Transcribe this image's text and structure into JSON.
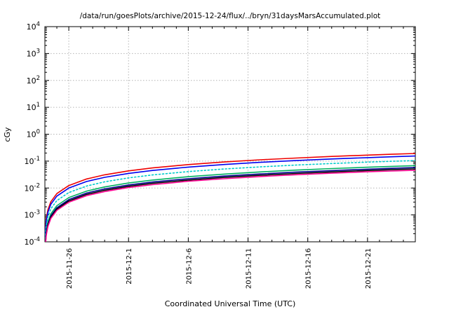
{
  "chart_data": {
    "type": "line",
    "title": "/data/run/goesPlots/archive/2015-12-24/flux/../bryn/31daysMarsAccumulated.plot",
    "xlabel": "Coordinated Universal Time (UTC)",
    "ylabel": "cGy",
    "legend": "none",
    "grid": true,
    "style": {
      "background": "#ffffff",
      "grid_color": "#b4b4b4",
      "axis_color": "#000000"
    },
    "x_axis": {
      "start_date_at_left_edge": "2015-11-24",
      "range_days": [
        0,
        31
      ],
      "minor_tick_every_days": 1,
      "ticks": [
        {
          "label": "2015-11-26",
          "day": 2
        },
        {
          "label": "2015-12-1",
          "day": 7
        },
        {
          "label": "2015-12-6",
          "day": 12
        },
        {
          "label": "2015-12-11",
          "day": 17
        },
        {
          "label": "2015-12-16",
          "day": 22
        },
        {
          "label": "2015-12-21",
          "day": 27
        }
      ]
    },
    "y_axis": {
      "scale": "log",
      "exponent_range": [
        -4,
        4
      ],
      "tick_exponents": [
        -4,
        -3,
        -2,
        -1,
        0,
        1,
        2,
        3,
        4
      ],
      "unit": "cGy"
    },
    "x_days": [
      0.016,
      0.03,
      0.06,
      0.12,
      0.25,
      0.5,
      1,
      2,
      3.5,
      5,
      7,
      9,
      12,
      15,
      18,
      21,
      24,
      27,
      29,
      31
    ],
    "series": [
      {
        "name": "red-accumulated-dose",
        "color": "#ee0000",
        "dash": "none",
        "values": [
          9.9e-05,
          0.00019,
          0.00037,
          0.00074,
          0.00155,
          0.0031,
          0.0062,
          0.0124,
          0.0217,
          0.031,
          0.0434,
          0.0558,
          0.0744,
          0.093,
          0.112,
          0.13,
          0.149,
          0.167,
          0.18,
          0.192
        ]
      },
      {
        "name": "blue-accumulated-dose",
        "color": "#0000ee",
        "dash": "none",
        "values": [
          8e-05,
          0.00015,
          0.0003,
          0.0006,
          0.00125,
          0.0025,
          0.005,
          0.01,
          0.0175,
          0.025,
          0.035,
          0.045,
          0.06,
          0.075,
          0.09,
          0.105,
          0.12,
          0.135,
          0.145,
          0.155
        ]
      },
      {
        "name": "cyan-accumulated-dose",
        "color": "#00cccc",
        "dash": "2,3",
        "values": [
          5.4e-05,
          0.0001,
          0.0002,
          0.00041,
          0.00085,
          0.0017,
          0.0034,
          0.0068,
          0.0119,
          0.017,
          0.0238,
          0.0306,
          0.0408,
          0.051,
          0.0612,
          0.0714,
          0.0816,
          0.0918,
          0.0986,
          0.105
        ]
      },
      {
        "name": "green-accumulated-dose",
        "color": "#00b060",
        "dash": "none",
        "values": [
          3.5e-05,
          6.6e-05,
          0.00013,
          0.00026,
          0.00055,
          0.0011,
          0.0022,
          0.0044,
          0.0077,
          0.011,
          0.0154,
          0.0198,
          0.0264,
          0.033,
          0.0396,
          0.0462,
          0.0528,
          0.0594,
          0.0638,
          0.0682
        ]
      },
      {
        "name": "navy-accumulated-dose",
        "color": "#000090",
        "dash": "none",
        "values": [
          3e-05,
          5.6e-05,
          0.00011,
          0.00022,
          0.00046,
          0.00093,
          0.00185,
          0.0037,
          0.0065,
          0.0093,
          0.013,
          0.0167,
          0.0222,
          0.0278,
          0.0333,
          0.0389,
          0.0444,
          0.05,
          0.0537,
          0.0574
        ]
      },
      {
        "name": "black-accumulated-dose",
        "color": "#000000",
        "dash": "none",
        "values": [
          2.6e-05,
          5e-05,
          9.9e-05,
          0.0002,
          0.00041,
          0.00083,
          0.00165,
          0.0033,
          0.0058,
          0.0083,
          0.0116,
          0.0149,
          0.0198,
          0.0248,
          0.0297,
          0.0347,
          0.0396,
          0.0446,
          0.0479,
          0.0512
        ]
      },
      {
        "name": "magenta-accumulated-dose",
        "color": "#ff0090",
        "dash": "none",
        "values": [
          2.4e-05,
          4.4e-05,
          8.9e-05,
          0.00018,
          0.00037,
          0.00074,
          0.00148,
          0.00296,
          0.0052,
          0.0074,
          0.0104,
          0.0133,
          0.0178,
          0.0222,
          0.0266,
          0.0311,
          0.0355,
          0.04,
          0.0429,
          0.0459
        ]
      }
    ]
  }
}
